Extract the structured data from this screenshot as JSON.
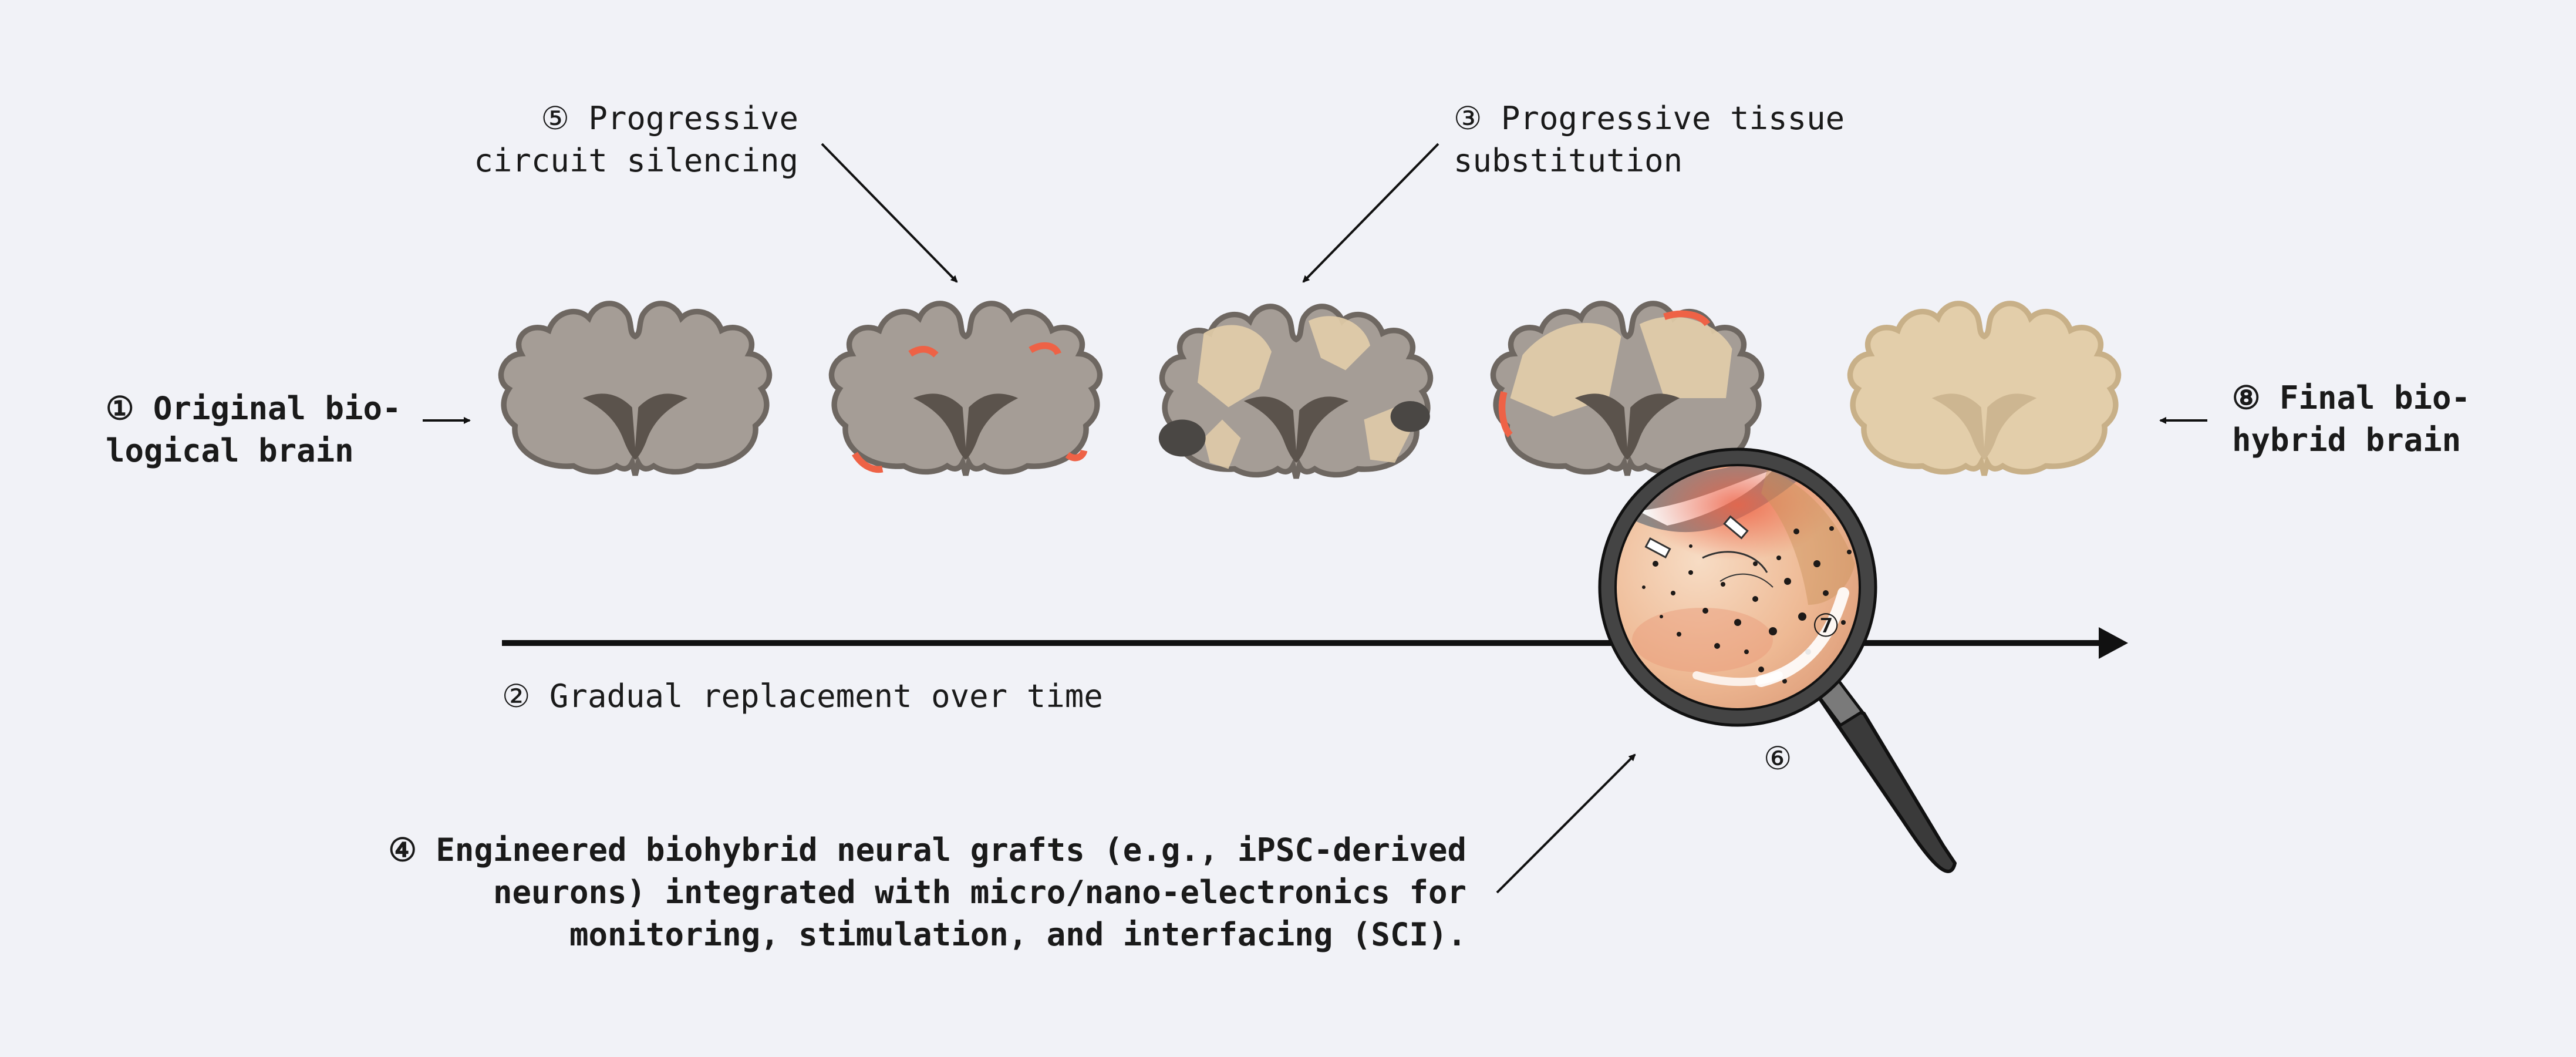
{
  "labels": {
    "original": "① Original bio-\nlogical brain",
    "replacement": "② Gradual replacement over time",
    "substitution": "③ Progressive tissue\nsubstitution",
    "grafts": "④ Engineered biohybrid neural grafts (e.g., iPSC-derived\nneurons) integrated with micro/nano-electronics for\nmonitoring, stimulation, and interfacing (SCI).",
    "silencing": "⑤ Progressive\ncircuit silencing",
    "marker6": "⑥",
    "marker7": "⑦",
    "final": "⑧ Final bio-\nhybrid brain"
  },
  "brain_stages": [
    {
      "stage": "original",
      "tissue": "biological"
    },
    {
      "stage": "silencing",
      "tissue": "biological",
      "silenced_edges": true
    },
    {
      "stage": "substitution",
      "tissue": "mixed"
    },
    {
      "stage": "late-substitution",
      "tissue": "mostly-graft",
      "magnified": true
    },
    {
      "stage": "final",
      "tissue": "biohybrid"
    }
  ],
  "colors": {
    "background": "#f1f2f7",
    "biological_tissue": "#a59d96",
    "tissue_outline": "#6e6761",
    "graft_tissue": "#e3ceaa",
    "graft_outline": "#c8b088",
    "silencing": "#ee6246",
    "lesion": "#4a4744",
    "timeline": "#111111",
    "magnifier_frame": "#3f3f3f"
  },
  "icons": {
    "timeline": "arrow-right-icon",
    "magnifier": "magnifying-glass-icon",
    "callouts": "arrow-icon"
  }
}
